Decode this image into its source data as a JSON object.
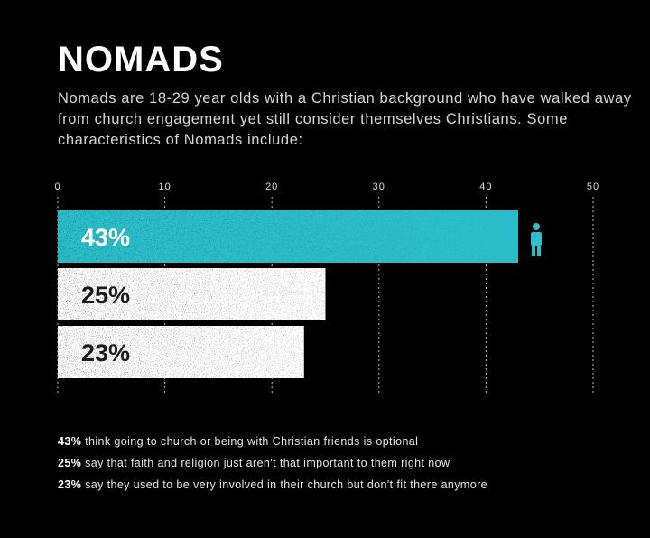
{
  "header": {
    "title": "NOMADS",
    "subtitle": "Nomads are 18-29 year olds with a Christian background who have walked away from church engagement yet still consider themselves Christians. Some characteristics of Nomads include:"
  },
  "chart_data": {
    "type": "bar",
    "orientation": "horizontal",
    "categories": [
      "43%",
      "25%",
      "23%"
    ],
    "values": [
      43,
      25,
      23
    ],
    "bar_labels": [
      "43%",
      "25%",
      "23%"
    ],
    "bar_colors": [
      "#2bbfcb",
      "#ffffff",
      "#ffffff"
    ],
    "label_colors": [
      "#ffffff",
      "#1a1a1a",
      "#1a1a1a"
    ],
    "xlim": [
      0,
      50
    ],
    "xticks": [
      0,
      10,
      20,
      30,
      40,
      50
    ],
    "grid": true,
    "highlight_icon": "person-icon",
    "title": "",
    "xlabel": "",
    "ylabel": ""
  },
  "notes": [
    {
      "pct": "43%",
      "text": " think going to church or being with Christian friends is optional"
    },
    {
      "pct": "25%",
      "text": " say that faith and religion just aren't that important to them right now"
    },
    {
      "pct": "23%",
      "text": " say they used to be very involved in their church but don't fit there anymore"
    }
  ],
  "colors": {
    "background": "#000000",
    "accent": "#2bbfcb",
    "bar_default": "#ffffff"
  }
}
